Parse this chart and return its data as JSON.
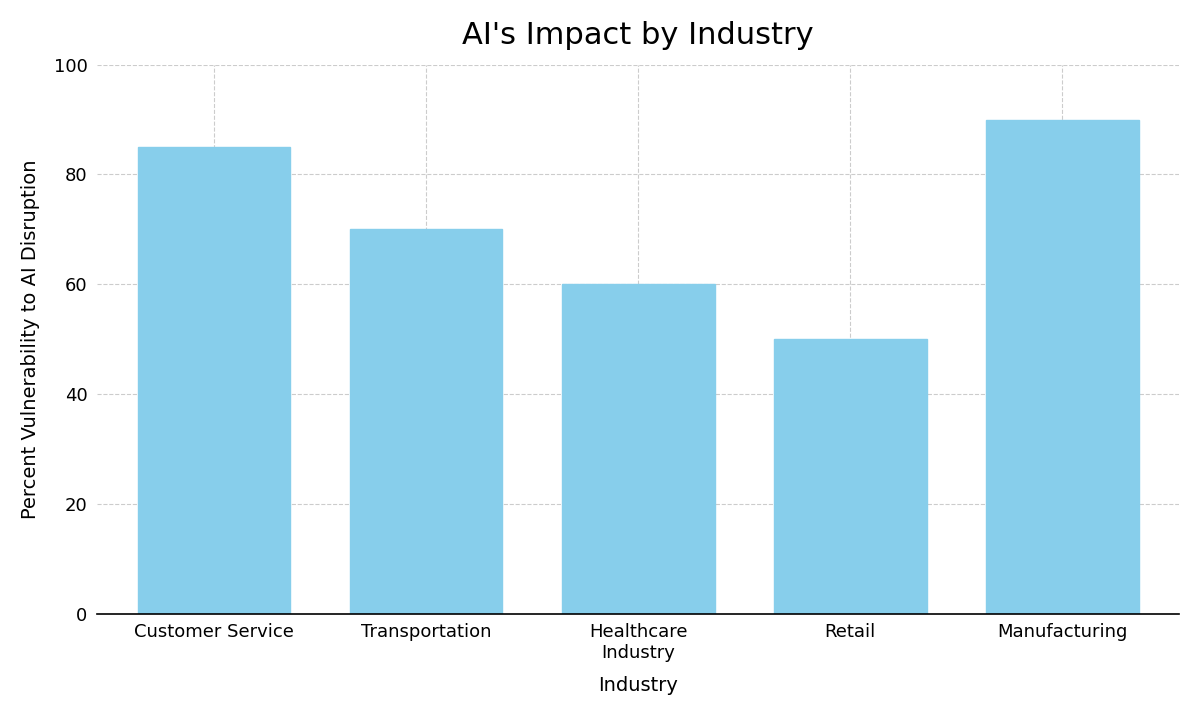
{
  "title": "AI's Impact by Industry",
  "xlabel": "Industry",
  "ylabel": "Percent Vulnerability to AI Disruption",
  "x_tick_labels": [
    "Customer Service",
    "Transportation",
    "Healthcare\nIndustry",
    "Retail",
    "Manufacturing"
  ],
  "values": [
    85,
    70,
    60,
    50,
    90
  ],
  "bar_color": "#87CEEB",
  "ylim": [
    0,
    100
  ],
  "yticks": [
    0,
    20,
    40,
    60,
    80,
    100
  ],
  "title_fontsize": 22,
  "label_fontsize": 14,
  "tick_fontsize": 13,
  "bar_width": 0.72,
  "background_color": "#ffffff",
  "grid_color": "#cccccc",
  "grid_linestyle": "--",
  "grid_linewidth": 0.8
}
